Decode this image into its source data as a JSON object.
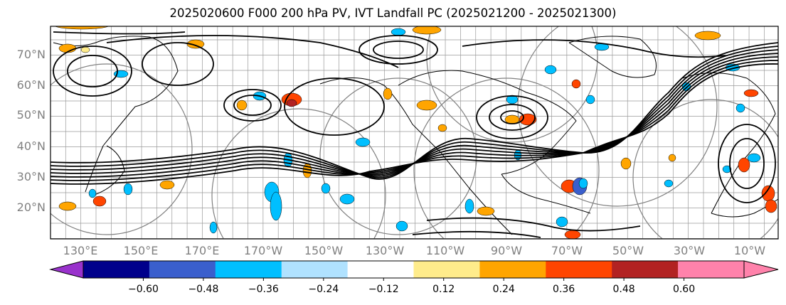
{
  "title": "2025020600 F000 200 hPa PV, IVT Landfall PC (2025021200 - 2025021300)",
  "map": {
    "projection": "plate-carree",
    "lat_labels": [
      "70°N",
      "60°N",
      "50°N",
      "40°N",
      "30°N",
      "20°N"
    ],
    "lon_labels": [
      "130°E",
      "150°E",
      "170°E",
      "170°W",
      "150°W",
      "130°W",
      "110°W",
      "90°W",
      "70°W",
      "50°W",
      "30°W",
      "10°W"
    ],
    "contour_color": "#000000",
    "coastline_color": "#000000",
    "range_ring_color": "#808080",
    "grid_color": "#9a9a9a"
  },
  "colorbar": {
    "tick_labels": [
      "−0.60",
      "−0.48",
      "−0.36",
      "−0.24",
      "−0.12",
      "0.12",
      "0.24",
      "0.36",
      "0.48",
      "0.60"
    ],
    "colors": [
      "#9932cc",
      "#00008b",
      "#3a5fcd",
      "#00bfff",
      "#b0e2ff",
      "#ffffff",
      "#ffec8b",
      "#ffa500",
      "#ff4500",
      "#b22222",
      "#ff82ab"
    ]
  }
}
